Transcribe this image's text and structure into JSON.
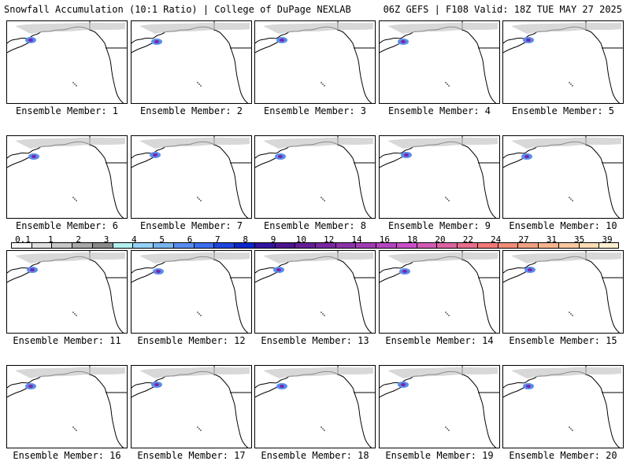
{
  "header": {
    "left": "Snowfall Accumulation (10:1 Ratio) | College of DuPage NEXLAB",
    "right": "06Z GEFS | F108 Valid: 18Z TUE MAY 27 2025"
  },
  "panels": [
    {
      "caption": "Ensemble Member: 1"
    },
    {
      "caption": "Ensemble Member: 2"
    },
    {
      "caption": "Ensemble Member: 3"
    },
    {
      "caption": "Ensemble Member: 4"
    },
    {
      "caption": "Ensemble Member: 5"
    },
    {
      "caption": "Ensemble Member: 6"
    },
    {
      "caption": "Ensemble Member: 7"
    },
    {
      "caption": "Ensemble Member: 8"
    },
    {
      "caption": "Ensemble Member: 9"
    },
    {
      "caption": "Ensemble Member: 10"
    },
    {
      "caption": "Ensemble Member: 11"
    },
    {
      "caption": "Ensemble Member: 12"
    },
    {
      "caption": "Ensemble Member: 13"
    },
    {
      "caption": "Ensemble Member: 14"
    },
    {
      "caption": "Ensemble Member: 15"
    },
    {
      "caption": "Ensemble Member: 16"
    },
    {
      "caption": "Ensemble Member: 17"
    },
    {
      "caption": "Ensemble Member: 18"
    },
    {
      "caption": "Ensemble Member: 19"
    },
    {
      "caption": "Ensemble Member: 20"
    }
  ],
  "legend": {
    "labels": [
      "0.1",
      "1",
      "2",
      "3",
      "4",
      "5",
      "6",
      "7",
      "8",
      "9",
      "10",
      "12",
      "14",
      "16",
      "18",
      "20",
      "22",
      "24",
      "27",
      "31",
      "35",
      "39"
    ],
    "colors": [
      "#f5f5f5",
      "#e0e0e0",
      "#c8c8c8",
      "#a8a8a8",
      "#8a8a8a",
      "#b4f0f0",
      "#96d2fa",
      "#78b4f0",
      "#5a8cf0",
      "#3c6ef0",
      "#1e46dc",
      "#0a28c8",
      "#3214a0",
      "#4b148c",
      "#641e96",
      "#7828a0",
      "#8c32aa",
      "#a03cb4",
      "#b446be",
      "#c850c8",
      "#d25ab4",
      "#dc64a0",
      "#e66e8c",
      "#f07878",
      "#f08c78",
      "#f0a082",
      "#f5b48c",
      "#fac8a0",
      "#fcdcb4",
      "#fef0d2"
    ]
  }
}
